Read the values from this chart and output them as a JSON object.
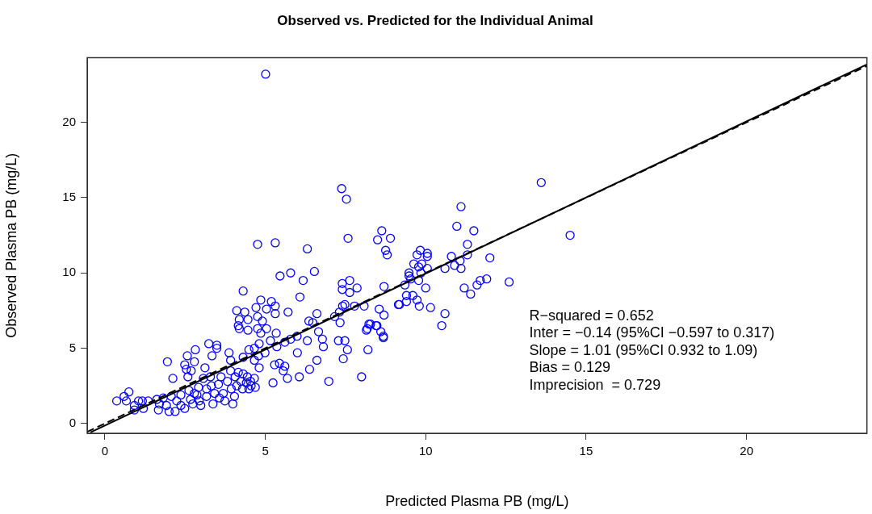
{
  "chart_data": {
    "type": "scatter",
    "title": "Observed vs. Predicted for the Individual Animal",
    "xlabel": "Predicted Plasma PB (mg/L)",
    "ylabel": "Observed Plasma PB (mg/L)",
    "annotations": [
      "R−squared = 0.652",
      "Inter = −0.14 (95%CI −0.597 to 0.317)",
      "Slope = 1.01 (95%CI 0.932 to 1.09)",
      "Bias = 0.129",
      "Imprecision  = 0.729"
    ],
    "xlim": [
      -0.55,
      23.75
    ],
    "ylim": [
      -0.65,
      24.3
    ],
    "xticks": [
      0,
      5,
      10,
      15,
      20
    ],
    "yticks": [
      0,
      5,
      10,
      15,
      20
    ],
    "grid": false,
    "legend": false,
    "marker": "circle",
    "series": [
      {
        "color": "#0000ff",
        "x": [
          5.01,
          7.38,
          7.53,
          4.76,
          5.31,
          6.31,
          7.58,
          8.63,
          8.5,
          8.9,
          8.75,
          8.8,
          5.46,
          5.79,
          6.53,
          6.18,
          4.31,
          6.08,
          7.4,
          7.63,
          7.86,
          7.4,
          7.63,
          8.7,
          9.15,
          4.11,
          4.36,
          4.71,
          4.86,
          5.19,
          5.31,
          5.04,
          4.19,
          4.46,
          4.76,
          4.91,
          5.31,
          5.71,
          4.19,
          4.46,
          4.76,
          5.04,
          5.34,
          6.61,
          7.41,
          7.78,
          8.08,
          8.55,
          8.7,
          7.16,
          7.31,
          7.33,
          6.36,
          6.48,
          6.66,
          8.23,
          8.45,
          8.68,
          8.15,
          6.78,
          6.31,
          5.99,
          3.24,
          3.49,
          7.28,
          7.48,
          13.6,
          14.5,
          11.1,
          10.97,
          11.5,
          11.3,
          12.0,
          10.8,
          11.07,
          10.9,
          11.1,
          10.6,
          11.3,
          12.6,
          11.9,
          11.7,
          11.6,
          11.2,
          11.4,
          10.6,
          10.5,
          9.83,
          9.73,
          10.05,
          10.05,
          9.63,
          9.88,
          9.78,
          10.05,
          9.48,
          9.48,
          9.53,
          9.85,
          9.78,
          9.35,
          10.0,
          9.4,
          9.6,
          9.4,
          9.73,
          9.18,
          9.8,
          10.15,
          8.18,
          8.28,
          8.48,
          8.6,
          8.68,
          8.2,
          7.56,
          7.48,
          0.37,
          0.6,
          0.75,
          0.67,
          0.92,
          1.05,
          1.17,
          0.92,
          1.2,
          1.35,
          1.62,
          1.7,
          1.67,
          1.82,
          1.92,
          2.0,
          1.95,
          2.12,
          2.07,
          2.19,
          2.24,
          2.37,
          2.37,
          2.49,
          2.57,
          2.59,
          2.49,
          2.54,
          2.79,
          2.69,
          2.82,
          2.62,
          2.67,
          2.79,
          2.74,
          2.87,
          2.92,
          2.94,
          2.99,
          3.07,
          3.12,
          3.17,
          3.17,
          3.29,
          3.32,
          3.37,
          3.34,
          3.42,
          3.49,
          3.54,
          3.57,
          3.62,
          3.69,
          3.74,
          3.82,
          3.87,
          3.92,
          3.94,
          3.92,
          3.99,
          4.04,
          4.06,
          4.11,
          4.16,
          4.24,
          4.29,
          4.31,
          4.41,
          4.44,
          4.49,
          4.54,
          4.56,
          4.66,
          4.69,
          4.79,
          4.66,
          4.81,
          5.24,
          4.66,
          4.81,
          4.99,
          5.16,
          5.61,
          5.44,
          5.61,
          5.29,
          4.86,
          4.16,
          4.49,
          4.31,
          5.56,
          5.69,
          6.06,
          6.38,
          6.61,
          6.98,
          8.0,
          6.81,
          7.43,
          5.79,
          6.0,
          5.36
        ],
        "values": [
          23.2,
          15.6,
          14.9,
          11.9,
          12.0,
          11.6,
          12.3,
          12.8,
          12.2,
          12.3,
          11.5,
          11.2,
          9.8,
          10.0,
          10.1,
          9.5,
          8.8,
          8.4,
          9.3,
          9.5,
          9.0,
          8.9,
          8.7,
          9.1,
          7.9,
          7.5,
          7.4,
          7.7,
          8.2,
          8.1,
          7.8,
          7.6,
          6.9,
          6.9,
          7.1,
          6.8,
          7.3,
          7.4,
          6.3,
          6.2,
          6.3,
          6.3,
          6.0,
          7.3,
          7.8,
          7.8,
          7.8,
          7.6,
          7.2,
          7.1,
          7.4,
          6.7,
          6.8,
          6.7,
          6.1,
          6.6,
          6.5,
          5.8,
          6.2,
          5.6,
          5.5,
          5.8,
          5.3,
          5.2,
          5.5,
          5.5,
          16.0,
          12.5,
          14.4,
          13.1,
          12.8,
          11.9,
          11.0,
          11.1,
          10.8,
          10.5,
          10.3,
          10.3,
          11.2,
          9.4,
          9.6,
          9.5,
          9.2,
          9.0,
          8.6,
          7.3,
          6.5,
          11.5,
          11.2,
          11.3,
          11.1,
          10.6,
          10.6,
          10.4,
          10.3,
          10.0,
          9.8,
          9.6,
          10.0,
          9.5,
          9.2,
          9.0,
          8.5,
          8.5,
          8.1,
          8.2,
          7.9,
          7.8,
          7.7,
          6.3,
          6.6,
          6.5,
          6.1,
          5.7,
          4.9,
          4.9,
          7.9,
          1.5,
          1.8,
          2.1,
          1.5,
          1.2,
          1.5,
          1.5,
          0.9,
          1.0,
          1.5,
          1.6,
          1.3,
          0.9,
          1.7,
          1.2,
          0.8,
          4.1,
          3.0,
          1.8,
          0.8,
          1.5,
          1.9,
          1.2,
          1.0,
          4.5,
          3.1,
          3.9,
          3.6,
          4.1,
          3.5,
          4.9,
          2.2,
          1.6,
          2.0,
          1.3,
          1.9,
          2.4,
          1.5,
          1.2,
          3.0,
          3.7,
          2.3,
          1.8,
          3.1,
          2.5,
          1.3,
          4.5,
          2.0,
          5.0,
          2.6,
          1.7,
          3.1,
          2.0,
          1.5,
          2.8,
          4.7,
          3.5,
          2.3,
          4.2,
          1.3,
          1.8,
          3.1,
          2.5,
          3.4,
          2.8,
          2.3,
          3.3,
          2.7,
          3.1,
          2.3,
          2.8,
          2.5,
          3.0,
          2.4,
          4.5,
          4.2,
          3.7,
          2.7,
          5.0,
          5.3,
          4.7,
          5.5,
          3.8,
          4.0,
          5.4,
          3.9,
          6.0,
          6.5,
          4.9,
          4.4,
          3.5,
          3.0,
          3.1,
          3.6,
          4.2,
          2.8,
          3.1,
          5.1,
          4.3,
          5.6,
          4.7,
          5.1
        ]
      },
      {
        "type": "line",
        "color": "#000000",
        "marker": "none",
        "line_style": "dashed",
        "x": [
          -0.55,
          23.75
        ],
        "values": [
          -0.55,
          23.75
        ]
      },
      {
        "type": "line",
        "color": "#000000",
        "marker": "none",
        "line_style": "solid",
        "x": [
          -0.45,
          23.75
        ],
        "values": [
          -0.59,
          23.85
        ]
      }
    ]
  }
}
